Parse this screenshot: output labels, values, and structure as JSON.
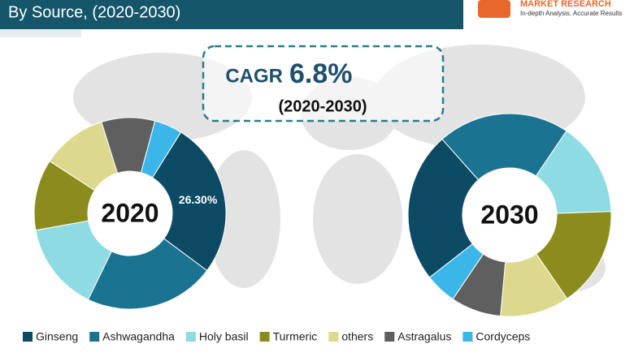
{
  "header": {
    "title": "By Source, (2020-2030)",
    "brand": "MARKET RESEARCH",
    "tagline": "In-depth Analysis. Accurate Results"
  },
  "cagr": {
    "label": "CAGR",
    "value": "6.8%",
    "period": "(2020-2030)"
  },
  "chart_data": [
    {
      "type": "donut",
      "center_label": "2020",
      "series": [
        {
          "name": "Ginseng",
          "color": "#0d4a63",
          "values": [
            26.3
          ],
          "value_labels": [
            "26.30%"
          ]
        },
        {
          "name": "Ashwagandha",
          "color": "#1a7391",
          "values": [
            22
          ]
        },
        {
          "name": "Holy basil",
          "color": "#8fdbe4",
          "values": [
            15
          ]
        },
        {
          "name": "Turmeric",
          "color": "#8c8c1e",
          "values": [
            12
          ]
        },
        {
          "name": "others",
          "color": "#dcd98e",
          "values": [
            11
          ]
        },
        {
          "name": "Astragalus",
          "color": "#5f5f5f",
          "values": [
            9
          ]
        },
        {
          "name": "Cordyceps",
          "color": "#3ab7e8",
          "values": [
            4.7
          ]
        }
      ]
    },
    {
      "type": "donut",
      "center_label": "2030",
      "series": [
        {
          "name": "Ginseng",
          "color": "#0d4a63",
          "values": [
            24
          ]
        },
        {
          "name": "Ashwagandha",
          "color": "#1a7391",
          "values": [
            21
          ]
        },
        {
          "name": "Holy basil",
          "color": "#8fdbe4",
          "values": [
            15
          ]
        },
        {
          "name": "Turmeric",
          "color": "#8c8c1e",
          "values": [
            16
          ]
        },
        {
          "name": "others",
          "color": "#dcd98e",
          "values": [
            11
          ]
        },
        {
          "name": "Astragalus",
          "color": "#5f5f5f",
          "values": [
            8
          ]
        },
        {
          "name": "Cordyceps",
          "color": "#3ab7e8",
          "values": [
            5
          ]
        }
      ]
    }
  ]
}
